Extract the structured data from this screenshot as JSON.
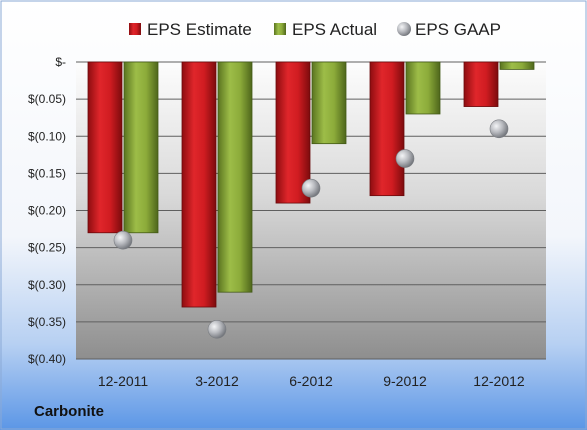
{
  "company": "Carbonite",
  "chart_data": {
    "type": "bar",
    "categories": [
      "12-2011",
      "3-2012",
      "6-2012",
      "9-2012",
      "12-2012"
    ],
    "series": [
      {
        "name": "EPS Estimate",
        "type": "bar",
        "color": "#c0181c",
        "values": [
          -0.23,
          -0.33,
          -0.19,
          -0.18,
          -0.06
        ]
      },
      {
        "name": "EPS Actual",
        "type": "bar",
        "color": "#7a9a2c",
        "values": [
          -0.23,
          -0.31,
          -0.11,
          -0.07,
          -0.01
        ]
      },
      {
        "name": "EPS GAAP",
        "type": "scatter",
        "color": "#a9abb0",
        "values": [
          -0.24,
          -0.36,
          -0.17,
          -0.13,
          -0.09
        ]
      }
    ],
    "ylim": [
      -0.4,
      0
    ],
    "yticks": [
      {
        "value": 0,
        "label": "$-"
      },
      {
        "value": -0.05,
        "label": "$(0.05)"
      },
      {
        "value": -0.1,
        "label": "$(0.10)"
      },
      {
        "value": -0.15,
        "label": "$(0.15)"
      },
      {
        "value": -0.2,
        "label": "$(0.20)"
      },
      {
        "value": -0.25,
        "label": "$(0.25)"
      },
      {
        "value": -0.3,
        "label": "$(0.30)"
      },
      {
        "value": -0.35,
        "label": "$(0.35)"
      },
      {
        "value": -0.4,
        "label": "$(0.40)"
      }
    ],
    "grid": true,
    "legend_position": "top"
  }
}
